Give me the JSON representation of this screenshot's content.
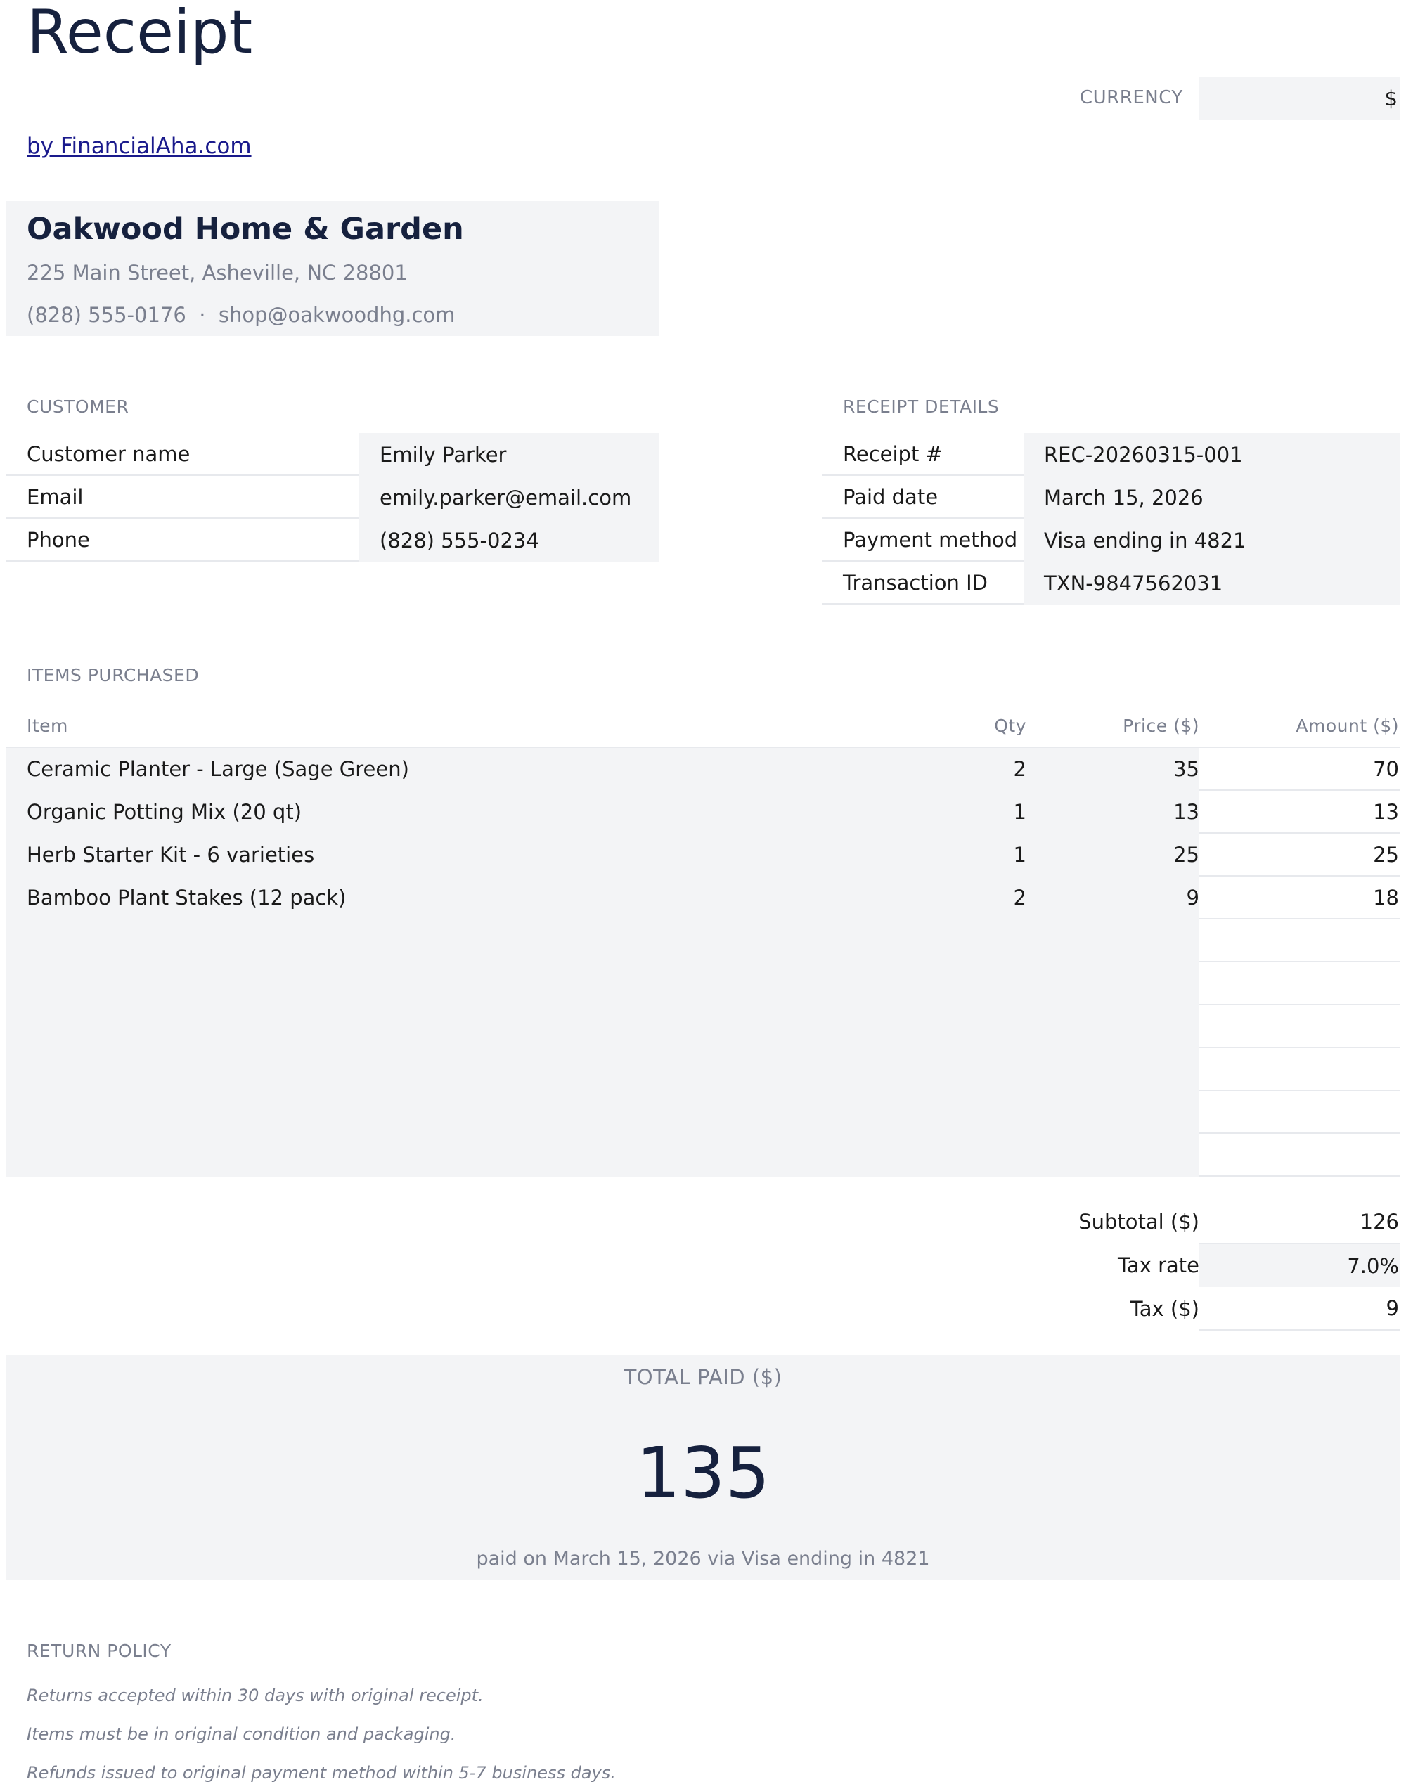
{
  "header": {
    "title": "Receipt",
    "byline": "by FinancialAha.com",
    "currency_label": "CURRENCY",
    "currency_value": "$"
  },
  "company": {
    "name": "Oakwood Home & Garden",
    "address": "225 Main Street, Asheville, NC 28801",
    "contact": "(828) 555-0176  ·  shop@oakwoodhg.com"
  },
  "customer": {
    "section_label": "CUSTOMER",
    "rows": [
      {
        "label": "Customer name",
        "value": "Emily Parker"
      },
      {
        "label": "Email",
        "value": "emily.parker@email.com"
      },
      {
        "label": "Phone",
        "value": "(828) 555-0234"
      }
    ]
  },
  "receipt_details": {
    "section_label": "RECEIPT DETAILS",
    "rows": [
      {
        "label": "Receipt #",
        "value": "REC-20260315-001"
      },
      {
        "label": "Paid date",
        "value": "March 15, 2026"
      },
      {
        "label": "Payment method",
        "value": "Visa ending in 4821"
      },
      {
        "label": "Transaction ID",
        "value": "TXN-9847562031"
      }
    ]
  },
  "items": {
    "section_label": "ITEMS PURCHASED",
    "columns": {
      "item": "Item",
      "qty": "Qty",
      "price": "Price ($)",
      "amount": "Amount ($)"
    },
    "rows": [
      {
        "item": "Ceramic Planter - Large (Sage Green)",
        "qty": "2",
        "price": "35",
        "amount": "70"
      },
      {
        "item": "Organic Potting Mix (20 qt)",
        "qty": "1",
        "price": "13",
        "amount": "13"
      },
      {
        "item": "Herb Starter Kit - 6 varieties",
        "qty": "1",
        "price": "25",
        "amount": "25"
      },
      {
        "item": "Bamboo Plant Stakes (12 pack)",
        "qty": "2",
        "price": "9",
        "amount": "18"
      }
    ]
  },
  "totals": {
    "subtotal_label": "Subtotal ($)",
    "subtotal_value": "126",
    "tax_rate_label": "Tax rate",
    "tax_rate_value": "7.0%",
    "tax_label": "Tax ($)",
    "tax_value": "9"
  },
  "total_paid": {
    "label": "TOTAL PAID ($)",
    "value": "135",
    "note": "paid on March 15, 2026 via Visa ending in 4821"
  },
  "return_policy": {
    "section_label": "RETURN POLICY",
    "lines": [
      "Returns accepted within 30 days with original receipt.",
      "Items must be in original condition and packaging.",
      "Refunds issued to original payment method within 5-7 business days."
    ]
  }
}
